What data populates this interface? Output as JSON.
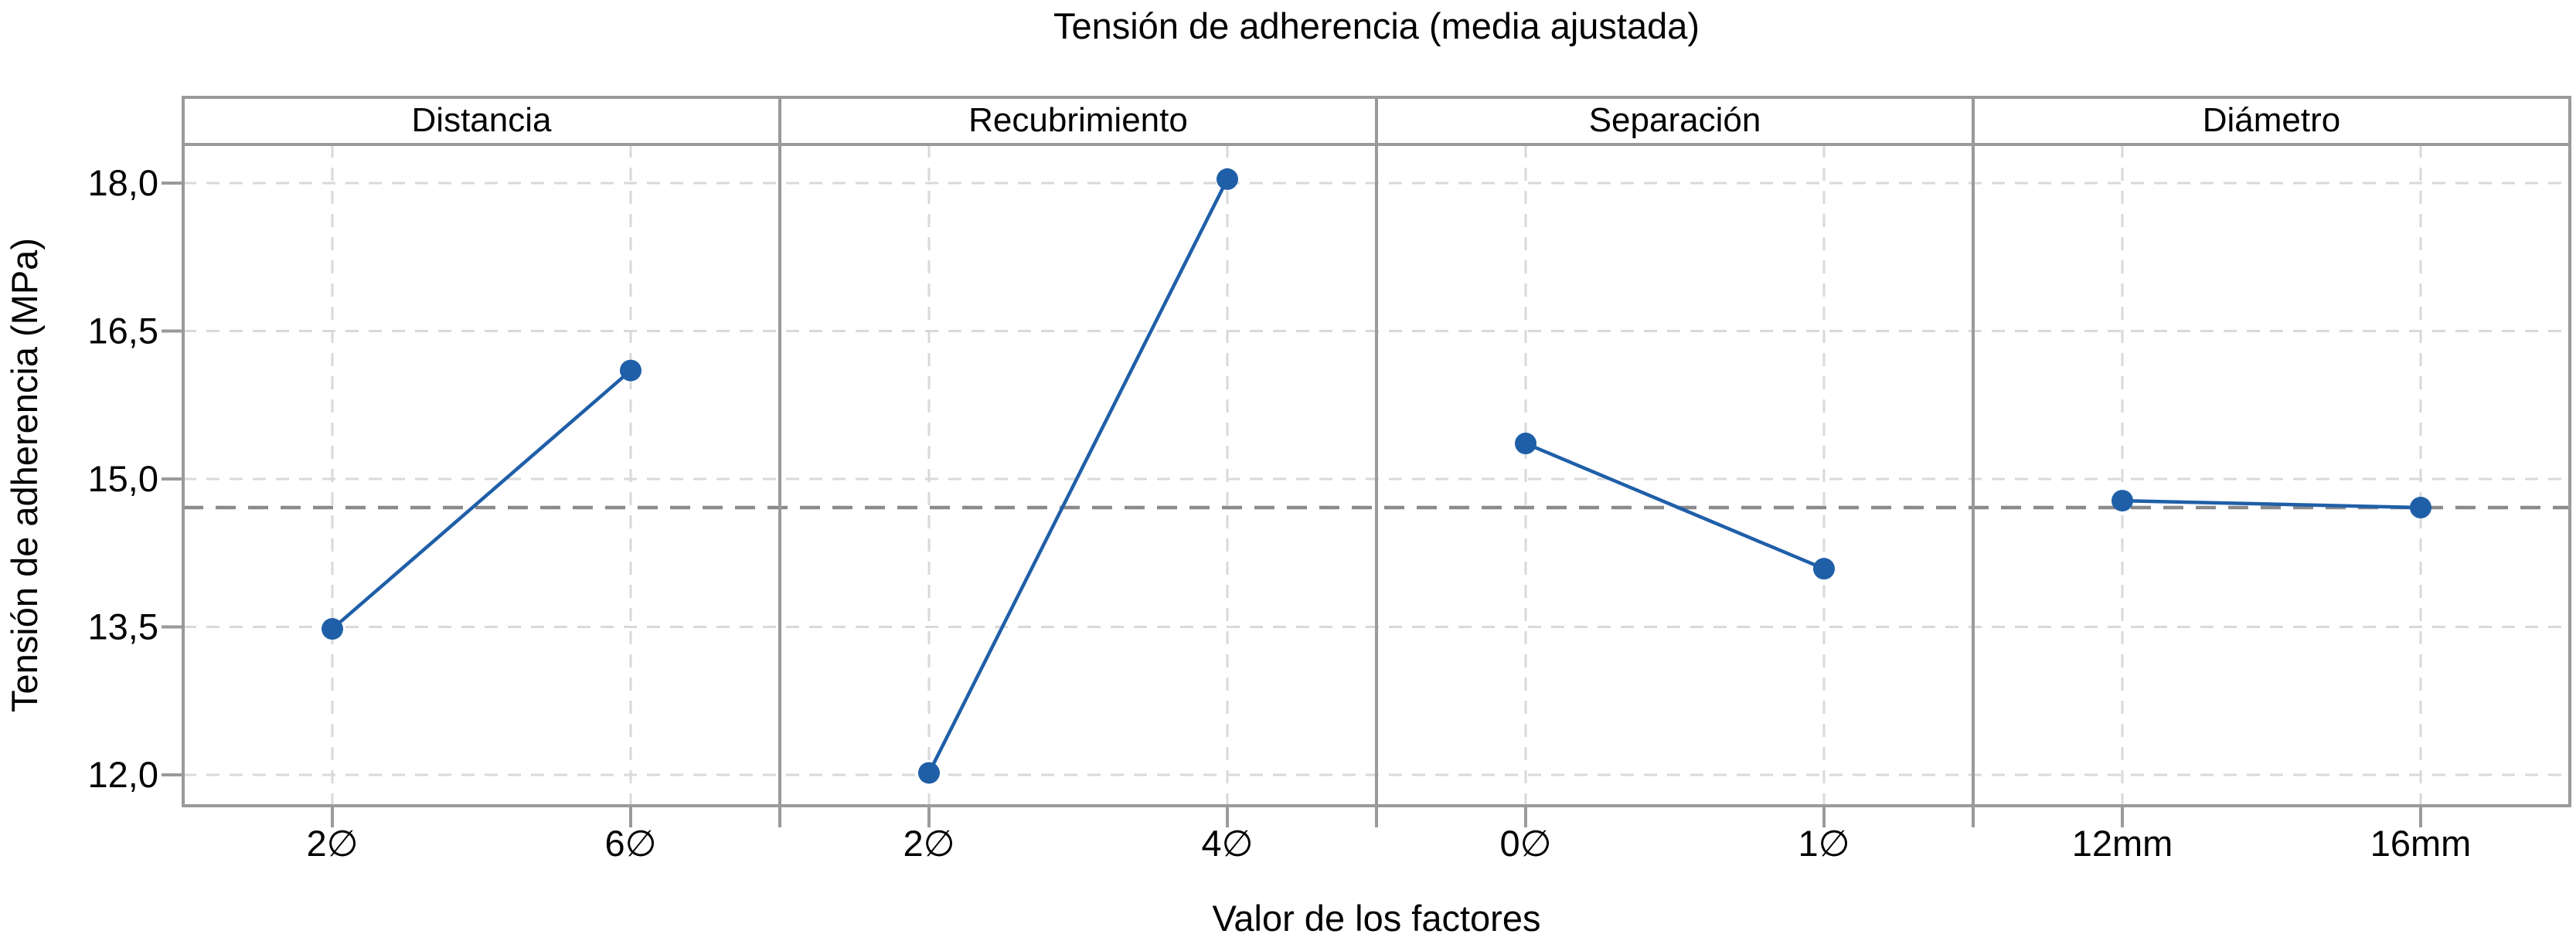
{
  "title": "Tensión de adherencia (media ajustada)",
  "axes": {
    "y_label": "Tensión de adherencia (MPa)",
    "x_label": "Valor de los factores"
  },
  "colors": {
    "series_blue": "#1f5fa8",
    "grid_light": "#d9d9d9",
    "mean_line_gray": "#8a8a8a",
    "border_gray": "#9a9a9a",
    "text_black": "#000000",
    "background": "#ffffff"
  },
  "chart_data": {
    "type": "line",
    "subtype": "main-effects-plot",
    "title": "Tensión de adherencia (media ajustada)",
    "xlabel": "Valor de los factores",
    "ylabel": "Tensión de adherencia (MPa)",
    "ylim": [
      11.7,
      18.4
    ],
    "y_ticks": [
      18.0,
      16.5,
      15.0,
      13.5,
      12.0
    ],
    "y_tick_labels": [
      "18,0",
      "16,5",
      "15,0",
      "13,5",
      "12,0"
    ],
    "decimal_separator": ",",
    "grand_mean": 14.71,
    "grid": true,
    "legend": "none",
    "panels": [
      {
        "factor": "Distancia",
        "categories": [
          "2∅",
          "6∅"
        ],
        "values": [
          13.48,
          16.1
        ]
      },
      {
        "factor": "Recubrimiento",
        "categories": [
          "2∅",
          "4∅"
        ],
        "values": [
          12.02,
          18.04
        ]
      },
      {
        "factor": "Separación",
        "categories": [
          "0∅",
          "1∅"
        ],
        "values": [
          15.36,
          14.09
        ]
      },
      {
        "factor": "Diámetro",
        "categories": [
          "12mm",
          "16mm"
        ],
        "values": [
          14.78,
          14.71
        ]
      }
    ]
  }
}
